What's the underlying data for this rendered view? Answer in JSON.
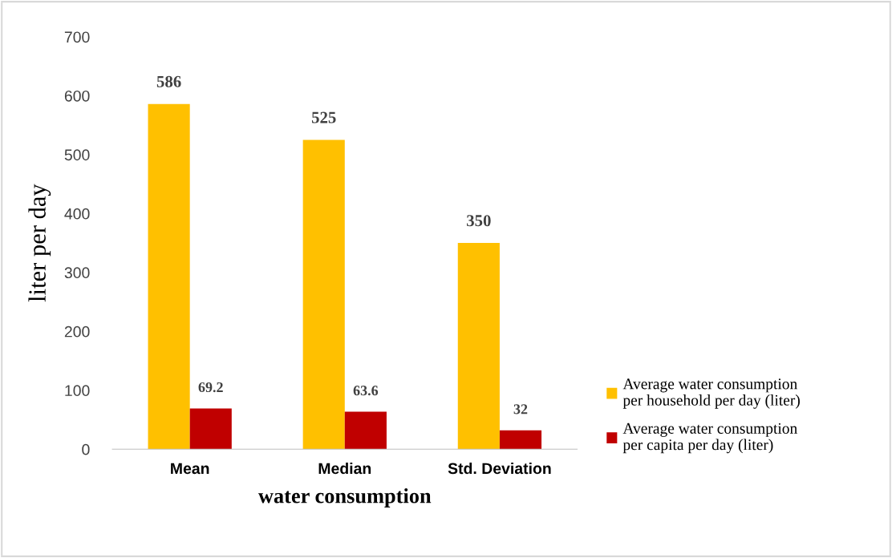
{
  "chart_data": {
    "type": "bar",
    "xlabel": "water consumption",
    "ylabel": "liter per day",
    "categories": [
      "Mean",
      "Median",
      "Std. Deviation"
    ],
    "series": [
      {
        "name": "Average water consumption\nper household per day (liter)",
        "color": "#ffc000",
        "values": [
          586,
          525,
          350
        ]
      },
      {
        "name": "Average water consumption\nper capita per day (liter)",
        "color": "#c00000",
        "values": [
          69.2,
          63.6,
          32
        ]
      }
    ],
    "ylim": [
      0,
      700
    ],
    "yticks": [
      0,
      100,
      200,
      300,
      400,
      500,
      600,
      700
    ],
    "grid": false,
    "legend": "right",
    "data_labels": true
  }
}
